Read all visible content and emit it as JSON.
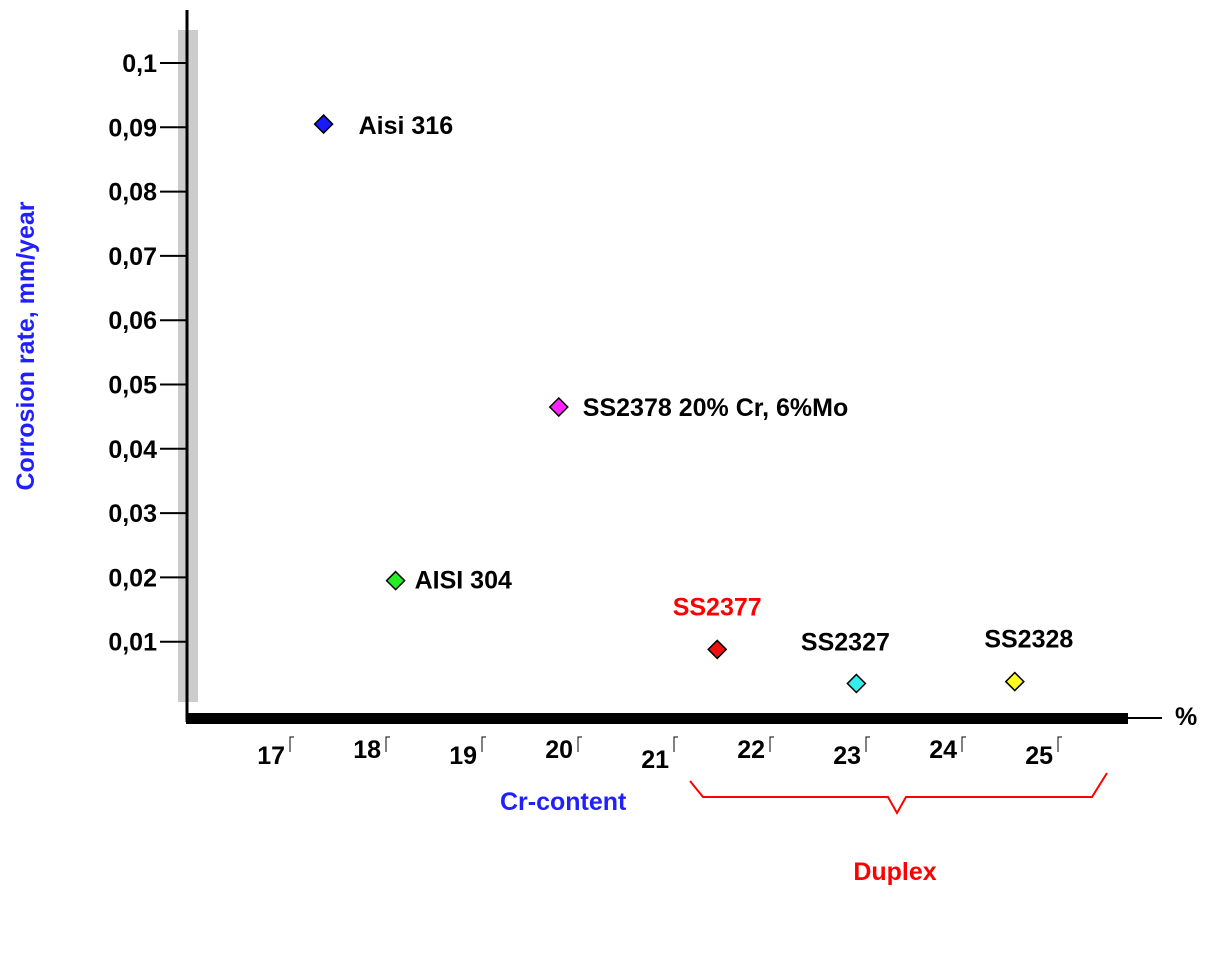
{
  "chart_data": {
    "type": "scatter",
    "title": "",
    "xlabel": "Cr-content",
    "ylabel": "Corrosion rate, mm/year",
    "x_unit": "%",
    "x_ticks": [
      "17",
      "18",
      "19",
      "20",
      "21",
      "22",
      "23",
      "24",
      "25"
    ],
    "y_ticks": [
      "0,01",
      "0,02",
      "0,03",
      "0,04",
      "0,05",
      "0,06",
      "0,07",
      "0,08",
      "0,09",
      "0,1"
    ],
    "xlim": [
      16.1,
      25.8
    ],
    "ylim": [
      0,
      0.1
    ],
    "grid": false,
    "legend": "none",
    "points": [
      {
        "label": "Aisi 316",
        "x": 17.35,
        "y": 0.0905,
        "color": "#1a1aff",
        "label_color": "#000000"
      },
      {
        "label": "SS2378 20% Cr, 6%Mo",
        "x": 19.8,
        "y": 0.0465,
        "color": "#ff22ff",
        "label_color": "#000000"
      },
      {
        "label": "AISI 304",
        "x": 18.1,
        "y": 0.0195,
        "color": "#22ee22",
        "label_color": "#000000"
      },
      {
        "label": "SS2377",
        "x": 21.45,
        "y": 0.0088,
        "color": "#ee1111",
        "label_color": "#ff0000"
      },
      {
        "label": "SS2327",
        "x": 22.9,
        "y": 0.0035,
        "color": "#33eeee",
        "label_color": "#000000"
      },
      {
        "label": "SS2328",
        "x": 24.55,
        "y": 0.0038,
        "color": "#ffff22",
        "label_color": "#000000"
      }
    ],
    "annotations": [
      {
        "text": "Duplex",
        "x_from": 21.3,
        "x_to": 25.5,
        "color": "#ff0000"
      }
    ]
  },
  "colors": {
    "axis": "#000000",
    "axis_title": "#1f1fff",
    "group": "#ff0000",
    "axis_shadow": "#cccccc"
  }
}
